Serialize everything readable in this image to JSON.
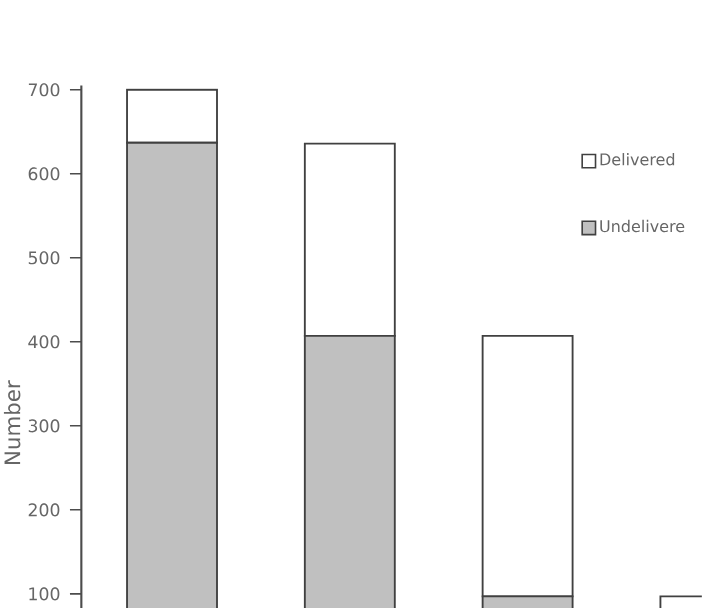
{
  "chart_data": {
    "type": "bar",
    "stacked": true,
    "ylabel": "Number",
    "categories": [
      null,
      null,
      null,
      null
    ],
    "series": [
      {
        "name": "Undelivere",
        "color": "#c0c0c0",
        "values": [
          637,
          407,
          97,
          null
        ]
      },
      {
        "name": "Delivered",
        "color": "#ffffff",
        "values": [
          63,
          229,
          310,
          97
        ]
      }
    ],
    "ylim": [
      0,
      705
    ],
    "yticks": [
      100,
      200,
      300,
      400,
      500,
      600,
      700
    ],
    "legend": "top right",
    "grid": false,
    "tick_labels": "y"
  }
}
